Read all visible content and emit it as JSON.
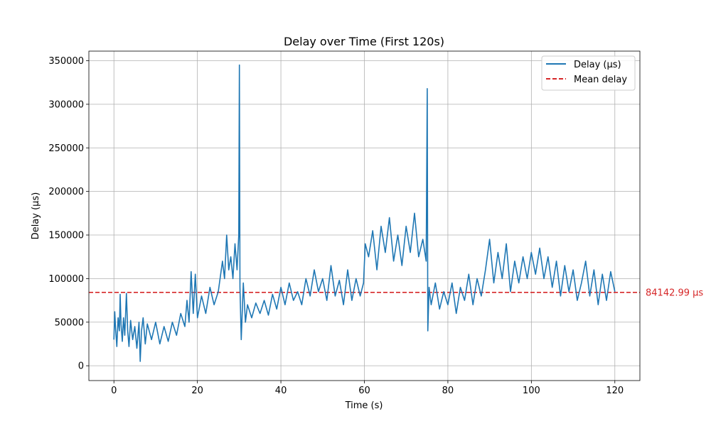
{
  "chart_data": {
    "type": "line",
    "title": "Delay over Time (First 120s)",
    "xlabel": "Time (s)",
    "ylabel": "Delay (µs)",
    "xlim": [
      -6,
      126
    ],
    "ylim": [
      -17000,
      361000
    ],
    "xticks": [
      0,
      20,
      40,
      60,
      80,
      100,
      120
    ],
    "yticks": [
      0,
      50000,
      100000,
      150000,
      200000,
      250000,
      300000,
      350000
    ],
    "grid": true,
    "legend_position": "top-right",
    "series": [
      {
        "name": "Delay (µs)",
        "color": "#1f77b4",
        "style": "solid",
        "x": [
          0,
          0.2,
          0.4,
          0.7,
          1,
          1.3,
          1.5,
          1.7,
          2,
          2.3,
          2.6,
          3,
          3.3,
          3.6,
          4,
          4.5,
          5,
          5.5,
          6,
          6.3,
          6.6,
          7,
          7.5,
          8,
          9,
          10,
          11,
          12,
          13,
          14,
          15,
          16,
          17,
          17.5,
          18,
          18.5,
          19,
          19.5,
          20,
          21,
          22,
          23,
          24,
          25,
          26,
          26.5,
          27,
          27.5,
          28,
          28.5,
          29,
          29.5,
          29.9,
          30.05,
          30.2,
          30.5,
          31,
          31.5,
          32,
          33,
          34,
          35,
          36,
          37,
          38,
          39,
          40,
          41,
          42,
          43,
          44,
          45,
          46,
          47,
          48,
          49,
          50,
          51,
          52,
          53,
          54,
          55,
          56,
          57,
          58,
          59,
          59.8,
          60.2,
          61,
          62,
          63,
          64,
          65,
          66,
          67,
          68,
          69,
          70,
          71,
          72,
          73,
          74,
          74.8,
          75.05,
          75.2,
          75.5,
          76,
          77,
          78,
          79,
          80,
          81,
          82,
          83,
          84,
          85,
          86,
          87,
          88,
          89,
          90,
          91,
          92,
          93,
          94,
          95,
          96,
          97,
          98,
          99,
          100,
          101,
          102,
          103,
          104,
          105,
          106,
          107,
          108,
          109,
          110,
          111,
          112,
          113,
          114,
          115,
          116,
          117,
          118,
          119,
          120
        ],
        "values": [
          30000,
          62000,
          42000,
          22000,
          55000,
          40000,
          82000,
          48000,
          28000,
          55000,
          35000,
          83000,
          40000,
          22000,
          52000,
          30000,
          45000,
          20000,
          50000,
          5000,
          40000,
          55000,
          25000,
          48000,
          30000,
          50000,
          25000,
          45000,
          28000,
          50000,
          35000,
          60000,
          45000,
          75000,
          50000,
          108000,
          60000,
          105000,
          55000,
          80000,
          60000,
          90000,
          70000,
          85000,
          120000,
          100000,
          150000,
          110000,
          125000,
          100000,
          140000,
          110000,
          150000,
          345000,
          90000,
          30000,
          95000,
          50000,
          70000,
          55000,
          72000,
          60000,
          75000,
          58000,
          82000,
          65000,
          90000,
          70000,
          95000,
          75000,
          85000,
          70000,
          100000,
          80000,
          110000,
          85000,
          100000,
          75000,
          115000,
          80000,
          98000,
          70000,
          110000,
          75000,
          100000,
          80000,
          95000,
          140000,
          125000,
          155000,
          110000,
          160000,
          130000,
          170000,
          120000,
          150000,
          115000,
          160000,
          130000,
          175000,
          125000,
          145000,
          120000,
          318000,
          40000,
          90000,
          70000,
          95000,
          65000,
          85000,
          70000,
          95000,
          60000,
          90000,
          75000,
          105000,
          70000,
          100000,
          80000,
          110000,
          145000,
          95000,
          130000,
          100000,
          140000,
          85000,
          120000,
          95000,
          125000,
          100000,
          130000,
          105000,
          135000,
          100000,
          125000,
          90000,
          120000,
          80000,
          115000,
          85000,
          110000,
          75000,
          95000,
          120000,
          80000,
          110000,
          70000,
          105000,
          75000,
          108000,
          85000
        ]
      },
      {
        "name": "Mean delay",
        "color": "#d62728",
        "style": "dashed",
        "value": 84142.99
      }
    ],
    "annotations": [
      {
        "text": "84142.99 µs",
        "color": "#d62728"
      }
    ]
  }
}
